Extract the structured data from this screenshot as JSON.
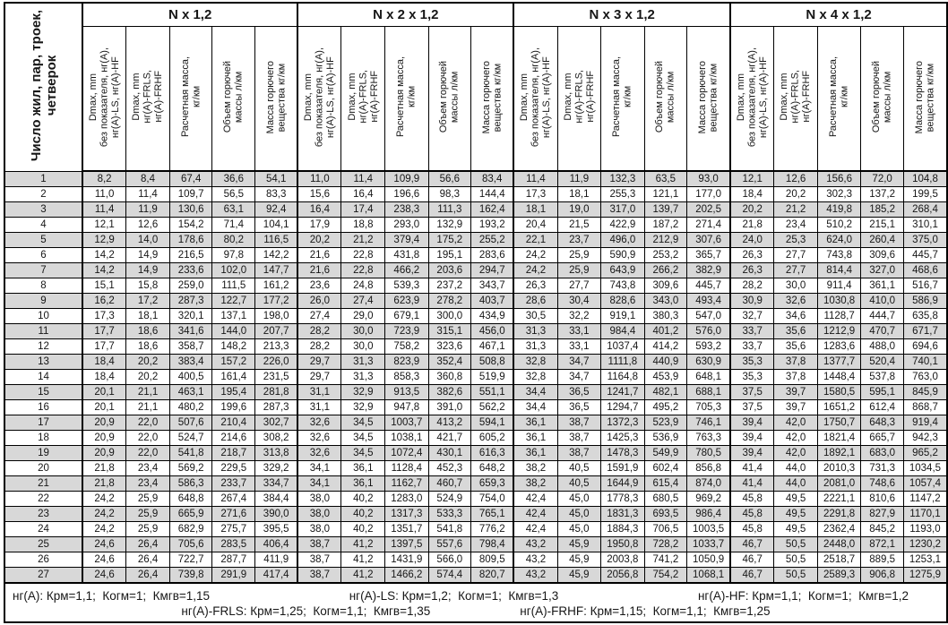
{
  "table": {
    "corner_header": "Число жил, пар, троек,\nчетверок",
    "groups": [
      "N x 1,2",
      "N x 2 x 1,2",
      "N x 3 x 1,2",
      "N x 4 x 1,2"
    ],
    "sub_headers": [
      "Dmax, mm\nбез показателя, нг(А),\nнг(А)-LS, нг(А)-HF",
      "Dmax, mm\nнг(А)-FRLS,\nнг(А)-FRHF",
      "Расчетная масса,\nкг/км",
      "Объем горючей\nмассы л/км",
      "Масса горючего\nвещества кг/км"
    ],
    "rows": [
      [
        "1",
        "8,2",
        "8,4",
        "67,4",
        "36,6",
        "54,1",
        "11,0",
        "11,4",
        "109,9",
        "56,6",
        "83,4",
        "11,4",
        "11,9",
        "132,3",
        "63,5",
        "93,0",
        "12,1",
        "12,6",
        "156,6",
        "72,0",
        "104,8"
      ],
      [
        "2",
        "11,0",
        "11,4",
        "109,7",
        "56,5",
        "83,3",
        "15,6",
        "16,4",
        "196,6",
        "98,3",
        "144,4",
        "17,3",
        "18,1",
        "255,3",
        "121,1",
        "177,0",
        "18,4",
        "20,2",
        "302,3",
        "137,2",
        "199,5"
      ],
      [
        "3",
        "11,4",
        "11,9",
        "130,6",
        "63,1",
        "92,4",
        "16,4",
        "17,4",
        "238,3",
        "111,3",
        "162,4",
        "18,1",
        "19,0",
        "317,0",
        "139,7",
        "202,5",
        "20,2",
        "21,2",
        "419,8",
        "185,2",
        "268,4"
      ],
      [
        "4",
        "12,1",
        "12,6",
        "154,2",
        "71,4",
        "104,1",
        "17,9",
        "18,8",
        "293,0",
        "132,9",
        "193,2",
        "20,4",
        "21,5",
        "422,9",
        "187,2",
        "271,4",
        "21,8",
        "23,4",
        "510,2",
        "215,1",
        "310,1"
      ],
      [
        "5",
        "12,9",
        "14,0",
        "178,6",
        "80,2",
        "116,5",
        "20,2",
        "21,2",
        "379,4",
        "175,2",
        "255,2",
        "22,1",
        "23,7",
        "496,0",
        "212,9",
        "307,6",
        "24,0",
        "25,3",
        "624,0",
        "260,4",
        "375,0"
      ],
      [
        "6",
        "14,2",
        "14,9",
        "216,5",
        "97,8",
        "142,2",
        "21,6",
        "22,8",
        "431,8",
        "195,1",
        "283,6",
        "24,2",
        "25,9",
        "590,9",
        "253,2",
        "365,7",
        "26,3",
        "27,7",
        "743,8",
        "309,6",
        "445,7"
      ],
      [
        "7",
        "14,2",
        "14,9",
        "233,6",
        "102,0",
        "147,7",
        "21,6",
        "22,8",
        "466,2",
        "203,6",
        "294,7",
        "24,2",
        "25,9",
        "643,9",
        "266,2",
        "382,9",
        "26,3",
        "27,7",
        "814,4",
        "327,0",
        "468,6"
      ],
      [
        "8",
        "15,1",
        "15,8",
        "259,0",
        "111,5",
        "161,2",
        "23,6",
        "24,8",
        "539,3",
        "237,2",
        "343,7",
        "26,3",
        "27,7",
        "743,8",
        "309,6",
        "445,7",
        "28,2",
        "30,0",
        "911,4",
        "361,1",
        "516,7"
      ],
      [
        "9",
        "16,2",
        "17,2",
        "287,3",
        "122,7",
        "177,2",
        "26,0",
        "27,4",
        "623,9",
        "278,2",
        "403,7",
        "28,6",
        "30,4",
        "828,6",
        "343,0",
        "493,4",
        "30,9",
        "32,6",
        "1030,8",
        "410,0",
        "586,9"
      ],
      [
        "10",
        "17,3",
        "18,1",
        "320,1",
        "137,1",
        "198,0",
        "27,4",
        "29,0",
        "679,1",
        "300,0",
        "434,9",
        "30,5",
        "32,2",
        "919,1",
        "380,3",
        "547,0",
        "32,7",
        "34,6",
        "1128,7",
        "444,7",
        "635,8"
      ],
      [
        "11",
        "17,7",
        "18,6",
        "341,6",
        "144,0",
        "207,7",
        "28,2",
        "30,0",
        "723,9",
        "315,1",
        "456,0",
        "31,3",
        "33,1",
        "984,4",
        "401,2",
        "576,0",
        "33,7",
        "35,6",
        "1212,9",
        "470,7",
        "671,7"
      ],
      [
        "12",
        "17,7",
        "18,6",
        "358,7",
        "148,2",
        "213,3",
        "28,2",
        "30,0",
        "758,2",
        "323,6",
        "467,1",
        "31,3",
        "33,1",
        "1037,4",
        "414,2",
        "593,2",
        "33,7",
        "35,6",
        "1283,6",
        "488,0",
        "694,6"
      ],
      [
        "13",
        "18,4",
        "20,2",
        "383,4",
        "157,2",
        "226,0",
        "29,7",
        "31,3",
        "823,9",
        "352,4",
        "508,8",
        "32,8",
        "34,7",
        "1111,8",
        "440,9",
        "630,9",
        "35,3",
        "37,8",
        "1377,7",
        "520,4",
        "740,1"
      ],
      [
        "14",
        "18,4",
        "20,2",
        "400,5",
        "161,4",
        "231,5",
        "29,7",
        "31,3",
        "858,3",
        "360,8",
        "519,9",
        "32,8",
        "34,7",
        "1164,8",
        "453,9",
        "648,1",
        "35,3",
        "37,8",
        "1448,4",
        "537,8",
        "763,0"
      ],
      [
        "15",
        "20,1",
        "21,1",
        "463,1",
        "195,4",
        "281,8",
        "31,1",
        "32,9",
        "913,5",
        "382,6",
        "551,1",
        "34,4",
        "36,5",
        "1241,7",
        "482,1",
        "688,1",
        "37,5",
        "39,7",
        "1580,5",
        "595,1",
        "845,9"
      ],
      [
        "16",
        "20,1",
        "21,1",
        "480,2",
        "199,6",
        "287,3",
        "31,1",
        "32,9",
        "947,8",
        "391,0",
        "562,2",
        "34,4",
        "36,5",
        "1294,7",
        "495,2",
        "705,3",
        "37,5",
        "39,7",
        "1651,2",
        "612,4",
        "868,7"
      ],
      [
        "17",
        "20,9",
        "22,0",
        "507,6",
        "210,4",
        "302,7",
        "32,6",
        "34,5",
        "1003,7",
        "413,2",
        "594,1",
        "36,1",
        "38,7",
        "1372,3",
        "523,9",
        "746,1",
        "39,4",
        "42,0",
        "1750,7",
        "648,3",
        "919,4"
      ],
      [
        "18",
        "20,9",
        "22,0",
        "524,7",
        "214,6",
        "308,2",
        "32,6",
        "34,5",
        "1038,1",
        "421,7",
        "605,2",
        "36,1",
        "38,7",
        "1425,3",
        "536,9",
        "763,3",
        "39,4",
        "42,0",
        "1821,4",
        "665,7",
        "942,3"
      ],
      [
        "19",
        "20,9",
        "22,0",
        "541,8",
        "218,7",
        "313,8",
        "32,6",
        "34,5",
        "1072,4",
        "430,1",
        "616,3",
        "36,1",
        "38,7",
        "1478,3",
        "549,9",
        "780,5",
        "39,4",
        "42,0",
        "1892,1",
        "683,0",
        "965,2"
      ],
      [
        "20",
        "21,8",
        "23,4",
        "569,2",
        "229,5",
        "329,2",
        "34,1",
        "36,1",
        "1128,4",
        "452,3",
        "648,2",
        "38,2",
        "40,5",
        "1591,9",
        "602,4",
        "856,8",
        "41,4",
        "44,0",
        "2010,3",
        "731,3",
        "1034,5"
      ],
      [
        "21",
        "21,8",
        "23,4",
        "586,3",
        "233,7",
        "334,7",
        "34,1",
        "36,1",
        "1162,7",
        "460,7",
        "659,3",
        "38,2",
        "40,5",
        "1644,9",
        "615,4",
        "874,0",
        "41,4",
        "44,0",
        "2081,0",
        "748,6",
        "1057,4"
      ],
      [
        "22",
        "24,2",
        "25,9",
        "648,8",
        "267,4",
        "384,4",
        "38,0",
        "40,2",
        "1283,0",
        "524,9",
        "754,0",
        "42,4",
        "45,0",
        "1778,3",
        "680,5",
        "969,2",
        "45,8",
        "49,5",
        "2221,1",
        "810,6",
        "1147,2"
      ],
      [
        "23",
        "24,2",
        "25,9",
        "665,9",
        "271,6",
        "390,0",
        "38,0",
        "40,2",
        "1317,3",
        "533,3",
        "765,1",
        "42,4",
        "45,0",
        "1831,3",
        "693,5",
        "986,4",
        "45,8",
        "49,5",
        "2291,8",
        "827,9",
        "1170,1"
      ],
      [
        "24",
        "24,2",
        "25,9",
        "682,9",
        "275,7",
        "395,5",
        "38,0",
        "40,2",
        "1351,7",
        "541,8",
        "776,2",
        "42,4",
        "45,0",
        "1884,3",
        "706,5",
        "1003,5",
        "45,8",
        "49,5",
        "2362,4",
        "845,2",
        "1193,0"
      ],
      [
        "25",
        "24,6",
        "26,4",
        "705,6",
        "283,5",
        "406,4",
        "38,7",
        "41,2",
        "1397,5",
        "557,6",
        "798,4",
        "43,2",
        "45,9",
        "1950,8",
        "728,2",
        "1033,7",
        "46,7",
        "50,5",
        "2448,0",
        "872,1",
        "1230,2"
      ],
      [
        "26",
        "24,6",
        "26,4",
        "722,7",
        "287,7",
        "411,9",
        "38,7",
        "41,2",
        "1431,9",
        "566,0",
        "809,5",
        "43,2",
        "45,9",
        "2003,8",
        "741,2",
        "1050,9",
        "46,7",
        "50,5",
        "2518,7",
        "889,5",
        "1253,1"
      ],
      [
        "27",
        "24,6",
        "26,4",
        "739,8",
        "291,9",
        "417,4",
        "38,7",
        "41,2",
        "1466,2",
        "574,4",
        "820,7",
        "43,2",
        "45,9",
        "2056,8",
        "754,2",
        "1068,1",
        "46,7",
        "50,5",
        "2589,3",
        "906,8",
        "1275,9"
      ]
    ]
  },
  "notes": {
    "l1": [
      "нг(А): Крм=1,1;  Когм=1;  Кмгв=1,15",
      "нг(А)-LS: Крм=1,2;  Когм=1;  Кмгв=1,3",
      "нг(А)-HF: Крм=1,1;  Когм=1;  Кмгв=1,2"
    ],
    "l2": [
      "нг(А)-FRLS: Крм=1,25;  Когм=1,1;  Кмгв=1,35",
      "нг(А)-FRHF: Крм=1,15;  Когм=1,1;  Кмгв=1,25"
    ]
  },
  "colors": {
    "shaded_row": "#d8d8d8",
    "border": "#000000",
    "background": "#ffffff"
  }
}
